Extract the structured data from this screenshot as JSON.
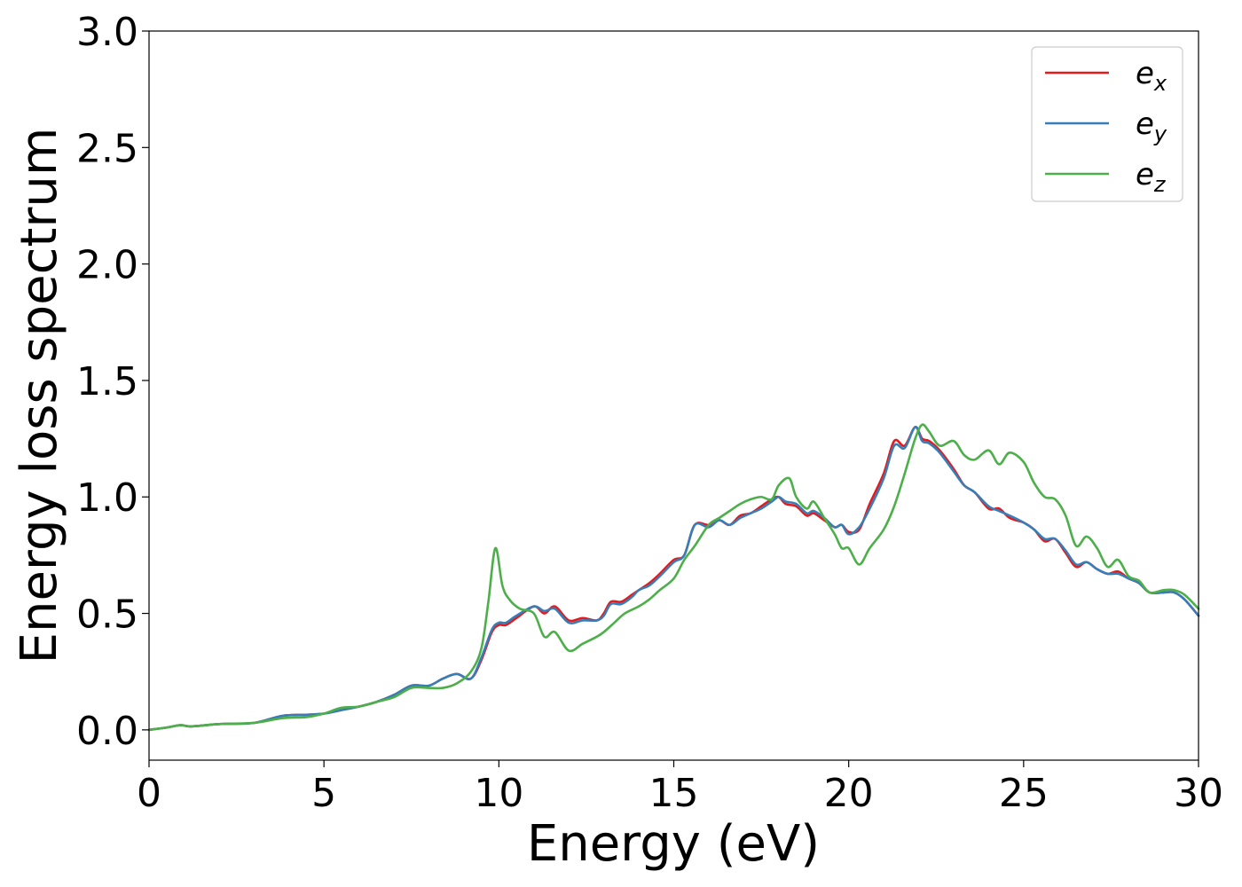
{
  "chart_data": {
    "type": "line",
    "title": "",
    "xlabel": "Energy (eV)",
    "ylabel": "Energy loss spectrum",
    "xlim": [
      0,
      30
    ],
    "ylim": [
      -0.13,
      3.0
    ],
    "xticks": [
      "0",
      "5",
      "10",
      "15",
      "20",
      "25",
      "30"
    ],
    "yticks": [
      "0.0",
      "0.5",
      "1.0",
      "1.5",
      "2.0",
      "2.5",
      "3.0"
    ],
    "grid": false,
    "legend_position": "top-right",
    "series": [
      {
        "name": "e_x",
        "legend_base": "e",
        "legend_sub": "x",
        "color": "#e41a1c",
        "x": [
          0,
          0.5,
          0.9,
          1.2,
          2,
          3,
          3.8,
          4.5,
          5,
          5.5,
          6,
          6.5,
          7,
          7.5,
          8,
          8.4,
          8.8,
          9.2,
          9.5,
          9.8,
          10,
          10.2,
          10.5,
          11,
          11.3,
          11.6,
          12,
          12.4,
          12.8,
          13,
          13.2,
          13.5,
          13.8,
          14,
          14.3,
          14.6,
          15,
          15.3,
          15.6,
          16,
          16.3,
          16.6,
          16.9,
          17.2,
          17.5,
          17.8,
          18,
          18.2,
          18.5,
          18.8,
          19,
          19.3,
          19.6,
          19.8,
          20,
          20.3,
          20.6,
          21,
          21.3,
          21.6,
          21.9,
          22.1,
          22.3,
          22.6,
          23,
          23.3,
          23.6,
          24,
          24.3,
          24.6,
          25,
          25.3,
          25.6,
          25.9,
          26.2,
          26.5,
          26.8,
          27.1,
          27.4,
          27.7,
          28,
          28.3,
          28.6,
          29,
          29.3,
          29.6,
          30
        ],
        "y": [
          0.0,
          0.01,
          0.02,
          0.015,
          0.025,
          0.03,
          0.06,
          0.065,
          0.07,
          0.085,
          0.1,
          0.12,
          0.15,
          0.19,
          0.19,
          0.22,
          0.24,
          0.22,
          0.3,
          0.42,
          0.45,
          0.45,
          0.48,
          0.53,
          0.5,
          0.53,
          0.47,
          0.48,
          0.47,
          0.5,
          0.55,
          0.55,
          0.58,
          0.6,
          0.63,
          0.67,
          0.73,
          0.75,
          0.88,
          0.88,
          0.9,
          0.88,
          0.92,
          0.93,
          0.96,
          0.99,
          1.0,
          0.97,
          0.96,
          0.92,
          0.93,
          0.9,
          0.87,
          0.88,
          0.85,
          0.86,
          0.97,
          1.1,
          1.24,
          1.22,
          1.3,
          1.25,
          1.24,
          1.2,
          1.12,
          1.05,
          1.02,
          0.95,
          0.95,
          0.91,
          0.89,
          0.86,
          0.81,
          0.82,
          0.76,
          0.7,
          0.72,
          0.69,
          0.67,
          0.68,
          0.65,
          0.63,
          0.59,
          0.59,
          0.59,
          0.56,
          0.49
        ]
      },
      {
        "name": "e_y",
        "legend_base": "e",
        "legend_sub": "y",
        "color": "#377eb8",
        "x": [
          0,
          0.5,
          0.9,
          1.2,
          2,
          3,
          3.8,
          4.5,
          5,
          5.5,
          6,
          6.5,
          7,
          7.5,
          8,
          8.4,
          8.8,
          9.2,
          9.5,
          9.8,
          10,
          10.2,
          10.5,
          11,
          11.3,
          11.6,
          12,
          12.4,
          12.8,
          13,
          13.2,
          13.5,
          13.8,
          14,
          14.3,
          14.6,
          15,
          15.3,
          15.6,
          16,
          16.3,
          16.6,
          16.9,
          17.2,
          17.5,
          17.8,
          18,
          18.2,
          18.5,
          18.8,
          19,
          19.3,
          19.6,
          19.8,
          20,
          20.3,
          20.6,
          21,
          21.3,
          21.6,
          21.9,
          22.1,
          22.3,
          22.6,
          23,
          23.3,
          23.6,
          24,
          24.3,
          24.6,
          25,
          25.3,
          25.6,
          25.9,
          26.2,
          26.5,
          26.8,
          27.1,
          27.4,
          27.7,
          28,
          28.3,
          28.6,
          29,
          29.3,
          29.6,
          30
        ],
        "y": [
          0.0,
          0.01,
          0.02,
          0.015,
          0.025,
          0.03,
          0.06,
          0.065,
          0.07,
          0.085,
          0.1,
          0.12,
          0.15,
          0.19,
          0.19,
          0.22,
          0.24,
          0.22,
          0.31,
          0.43,
          0.46,
          0.46,
          0.49,
          0.53,
          0.51,
          0.52,
          0.46,
          0.47,
          0.47,
          0.49,
          0.54,
          0.54,
          0.57,
          0.6,
          0.62,
          0.66,
          0.72,
          0.75,
          0.88,
          0.87,
          0.9,
          0.88,
          0.91,
          0.93,
          0.95,
          0.98,
          1.0,
          0.98,
          0.97,
          0.93,
          0.94,
          0.91,
          0.87,
          0.88,
          0.84,
          0.87,
          0.95,
          1.08,
          1.22,
          1.21,
          1.3,
          1.24,
          1.23,
          1.19,
          1.11,
          1.05,
          1.02,
          0.96,
          0.94,
          0.92,
          0.89,
          0.86,
          0.82,
          0.82,
          0.77,
          0.71,
          0.72,
          0.69,
          0.67,
          0.67,
          0.65,
          0.63,
          0.59,
          0.59,
          0.59,
          0.56,
          0.49
        ]
      },
      {
        "name": "e_z",
        "legend_base": "e",
        "legend_sub": "z",
        "color": "#4daf4a",
        "x": [
          0,
          0.5,
          0.9,
          1.2,
          2,
          3,
          3.8,
          4.5,
          5,
          5.5,
          6,
          6.5,
          7,
          7.5,
          8,
          8.4,
          8.8,
          9.2,
          9.5,
          9.7,
          9.9,
          10.1,
          10.3,
          10.6,
          11,
          11.3,
          11.6,
          12,
          12.4,
          12.8,
          13,
          13.3,
          13.6,
          14,
          14.3,
          14.6,
          15,
          15.3,
          15.6,
          16,
          16.3,
          16.6,
          16.9,
          17.2,
          17.5,
          17.8,
          18,
          18.3,
          18.5,
          18.8,
          19,
          19.3,
          19.6,
          19.8,
          20,
          20.3,
          20.6,
          21,
          21.3,
          21.6,
          21.9,
          22.1,
          22.3,
          22.6,
          23,
          23.3,
          23.6,
          24,
          24.3,
          24.6,
          25,
          25.3,
          25.6,
          25.9,
          26.2,
          26.5,
          26.8,
          27.1,
          27.4,
          27.7,
          28,
          28.3,
          28.6,
          29,
          29.3,
          29.6,
          30
        ],
        "y": [
          0.0,
          0.01,
          0.02,
          0.015,
          0.025,
          0.03,
          0.05,
          0.055,
          0.07,
          0.095,
          0.1,
          0.12,
          0.14,
          0.18,
          0.18,
          0.18,
          0.2,
          0.25,
          0.35,
          0.55,
          0.78,
          0.62,
          0.56,
          0.52,
          0.5,
          0.4,
          0.42,
          0.34,
          0.37,
          0.4,
          0.42,
          0.46,
          0.5,
          0.53,
          0.56,
          0.6,
          0.65,
          0.73,
          0.79,
          0.88,
          0.91,
          0.94,
          0.97,
          0.99,
          1.0,
          0.99,
          1.05,
          1.08,
          1.0,
          0.95,
          0.98,
          0.91,
          0.84,
          0.78,
          0.78,
          0.71,
          0.78,
          0.86,
          0.96,
          1.1,
          1.25,
          1.31,
          1.28,
          1.22,
          1.24,
          1.18,
          1.16,
          1.2,
          1.14,
          1.19,
          1.15,
          1.06,
          1.0,
          0.99,
          0.92,
          0.79,
          0.83,
          0.78,
          0.7,
          0.73,
          0.66,
          0.64,
          0.59,
          0.6,
          0.6,
          0.58,
          0.52
        ]
      }
    ]
  }
}
